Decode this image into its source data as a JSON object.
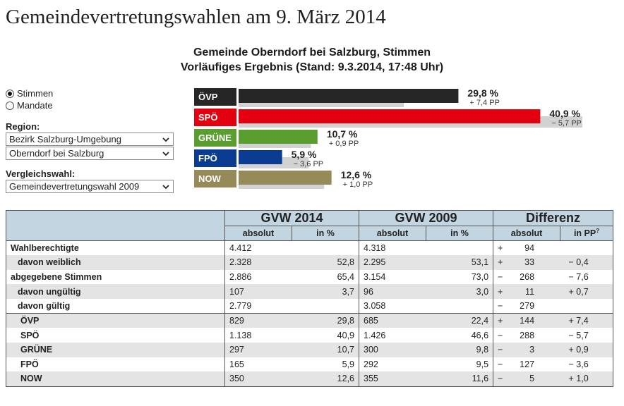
{
  "page": {
    "title": "Gemeindevertretungswahlen am 9. März 2014"
  },
  "controls": {
    "radio_options": [
      {
        "label": "Stimmen",
        "selected": true
      },
      {
        "label": "Mandate",
        "selected": false
      }
    ],
    "region_label": "Region:",
    "region_values": [
      "Bezirk Salzburg-Umgebung",
      "Oberndorf bei Salzburg"
    ],
    "compare_label": "Vergleichswahl:",
    "compare_value": "Gemeindevertretungswahl 2009"
  },
  "chart_data": {
    "type": "bar",
    "title": "Gemeinde Oberndorf bei Salzburg, Stimmen",
    "subtitle": "Vorläufiges Ergebnis (Stand: 9.3.2014, 17:48 Uhr)",
    "orientation": "horizontal",
    "categories": [
      "ÖVP",
      "SPÖ",
      "GRÜNE",
      "FPÖ",
      "NOW"
    ],
    "series": [
      {
        "values": [
          29.8,
          40.9,
          10.7,
          5.9,
          12.6
        ]
      },
      {
        "values": [
          22.4,
          46.6,
          9.8,
          9.5,
          11.6
        ]
      }
    ],
    "value_labels": [
      "29,8 %",
      "40,9 %",
      "10,7 %",
      "5,9 %",
      "12,6 %"
    ],
    "diff_labels": [
      "+ 7,4 PP",
      "− 5,7 PP",
      "+ 0,9 PP",
      "− 3,6 PP",
      "+ 1,0 PP"
    ],
    "colors": [
      "#262626",
      "#e3000f",
      "#5a9e2f",
      "#0a3d91",
      "#958a58"
    ],
    "comparison_color": "#d2d2d2",
    "xlim": [
      0,
      48
    ]
  },
  "table": {
    "groups": [
      "GVW 2014",
      "GVW 2009",
      "Differenz"
    ],
    "subheaders": [
      "absolut",
      "in %",
      "absolut",
      "in %",
      "absolut",
      "in PP"
    ],
    "pp_marker": "?",
    "rows": [
      {
        "label": "Wahlberechtigte",
        "style": "plain",
        "a2014": "4.412",
        "p2014": "",
        "a2009": "4.318",
        "p2009": "",
        "dsign": "+",
        "dabs": "94",
        "dpp": ""
      },
      {
        "label": "davon weiblich",
        "style": "ind",
        "a2014": "2.328",
        "p2014": "52,8",
        "a2009": "2.295",
        "p2009": "53,1",
        "dsign": "+",
        "dabs": "33",
        "dpp": "− 0,4"
      },
      {
        "label": "abgegebene Stimmen",
        "style": "plain",
        "a2014": "2.886",
        "p2014": "65,4",
        "a2009": "3.154",
        "p2009": "73,0",
        "dsign": "−",
        "dabs": "268",
        "dpp": "− 7,6"
      },
      {
        "label": "davon ungültig",
        "style": "ind",
        "a2014": "107",
        "p2014": "3,7",
        "a2009": "96",
        "p2009": "3,0",
        "dsign": "+",
        "dabs": "11",
        "dpp": "+ 0,7"
      },
      {
        "label": "davon gültig",
        "style": "ind",
        "a2014": "2.779",
        "p2014": "",
        "a2009": "3.058",
        "p2009": "",
        "dsign": "−",
        "dabs": "279",
        "dpp": ""
      },
      {
        "label": "ÖVP",
        "style": "party",
        "a2014": "829",
        "p2014": "29,8",
        "a2009": "685",
        "p2009": "22,4",
        "dsign": "+",
        "dabs": "144",
        "dpp": "+ 7,4"
      },
      {
        "label": "SPÖ",
        "style": "party",
        "a2014": "1.138",
        "p2014": "40,9",
        "a2009": "1.426",
        "p2009": "46,6",
        "dsign": "−",
        "dabs": "288",
        "dpp": "− 5,7"
      },
      {
        "label": "GRÜNE",
        "style": "party",
        "a2014": "297",
        "p2014": "10,7",
        "a2009": "300",
        "p2009": "9,8",
        "dsign": "−",
        "dabs": "3",
        "dpp": "+ 0,9"
      },
      {
        "label": "FPÖ",
        "style": "party",
        "a2014": "165",
        "p2014": "5,9",
        "a2009": "292",
        "p2009": "9,5",
        "dsign": "−",
        "dabs": "127",
        "dpp": "− 3,6"
      },
      {
        "label": "NOW",
        "style": "party",
        "a2014": "350",
        "p2014": "12,6",
        "a2009": "355",
        "p2009": "11,6",
        "dsign": "−",
        "dabs": "5",
        "dpp": "+ 1,0"
      }
    ]
  }
}
